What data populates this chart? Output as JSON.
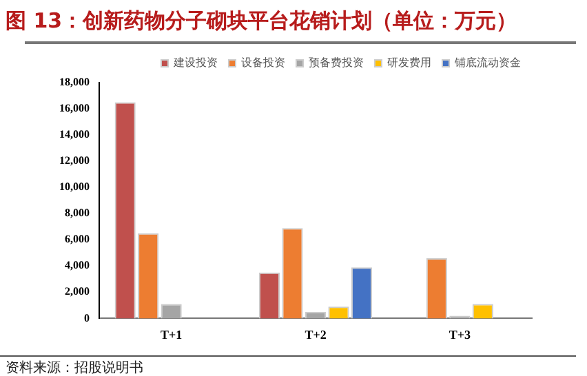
{
  "chart_data": {
    "type": "bar",
    "title": "图 13：创新药物分子砌块平台花销计划（单位：万元）",
    "categories": [
      "T+1",
      "T+2",
      "T+3"
    ],
    "series": [
      {
        "name": "建设投资",
        "color": "#c0504d",
        "values": [
          16500,
          3500,
          0
        ]
      },
      {
        "name": "设备投资",
        "color": "#ed7d31",
        "values": [
          6500,
          6900,
          4600
        ]
      },
      {
        "name": "预备费投资",
        "color": "#a5a5a5",
        "values": [
          1100,
          500,
          200
        ]
      },
      {
        "name": "研发费用",
        "color": "#ffc000",
        "values": [
          0,
          900,
          1100
        ]
      },
      {
        "name": "铺底流动资金",
        "color": "#4472c4",
        "values": [
          0,
          3900,
          0
        ]
      }
    ],
    "ylim": [
      0,
      18000
    ],
    "yticks": [
      0,
      {
        "value": 2000,
        "label": "2,000"
      },
      {
        "value": 4000,
        "label": "4,000"
      },
      {
        "value": 6000,
        "label": "6,000"
      },
      {
        "value": 8000,
        "label": "8,000"
      },
      {
        "value": 10000,
        "label": "10,000"
      },
      {
        "value": 12000,
        "label": "12,000"
      },
      {
        "value": 14000,
        "label": "14,000"
      },
      {
        "value": 16000,
        "label": "16,000"
      },
      {
        "value": 18000,
        "label": "18,000"
      }
    ],
    "grid": false,
    "legend": "top right",
    "annotations": [
      "资料来源：招股说明书"
    ]
  }
}
